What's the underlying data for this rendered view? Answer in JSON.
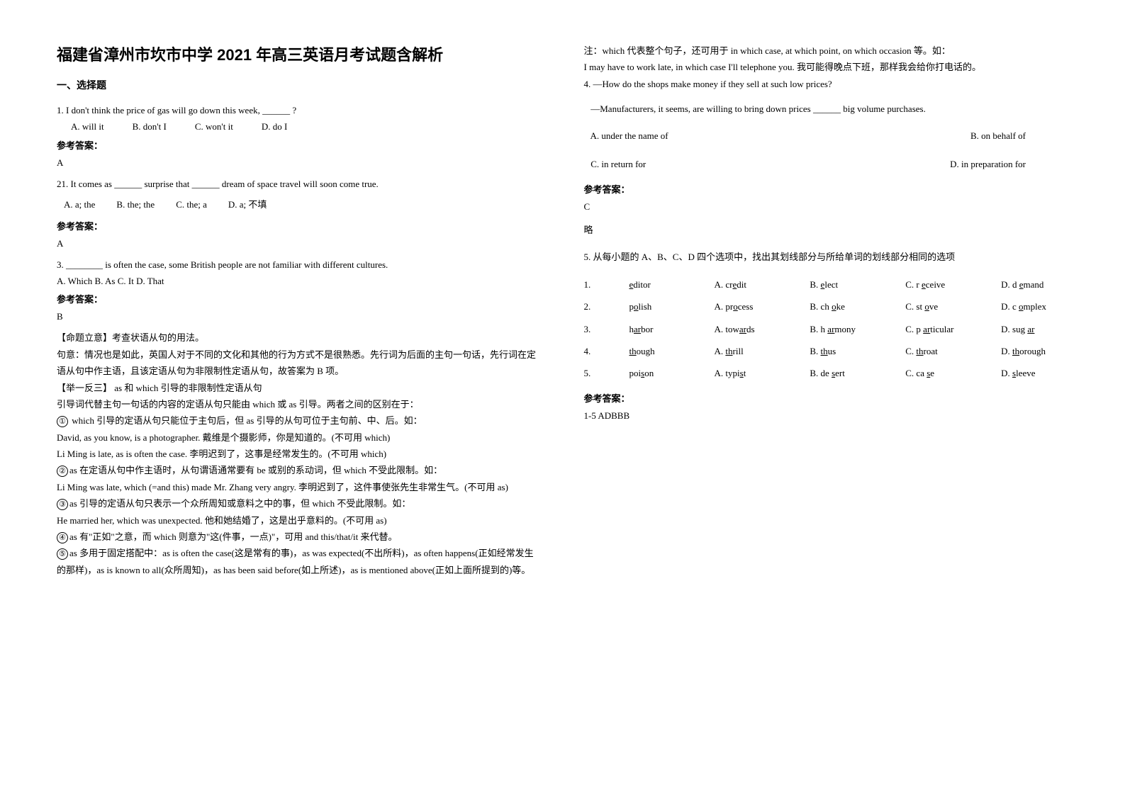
{
  "doc": {
    "title": "福建省漳州市坎市中学 2021 年高三英语月考试题含解析",
    "section1": "一、选择题",
    "q1": {
      "stem": "1. I don't think the price of gas will go down this week, ______ ?",
      "optA": "A. will it",
      "optB": "B. don't I",
      "optC": "C. won't it",
      "optD": "D. do I",
      "ansHead": "参考答案：",
      "ans": "A"
    },
    "q2": {
      "stem": "21. It comes as ______ surprise that ______ dream of space travel will soon come true.",
      "optA": "A. a; the",
      "optB": "B. the; the",
      "optC": "C. the; a",
      "optD": "D. a; 不填",
      "ansHead": "参考答案：",
      "ans": "A"
    },
    "q3": {
      "stem": "3. ________ is often the case, some British people are not familiar with different cultures.",
      "opts": "A. Which    B. As    C. It   D. That",
      "ansHead": "参考答案：",
      "ans": "B",
      "expl1": "【命题立意】考查状语从句的用法。",
      "expl2": "句意：情况也是如此，英国人对于不同的文化和其他的行为方式不是很熟悉。先行词为后面的主句一句话，先行词在定语从句中作主语，且该定语从句为非限制性定语从句，故答案为 B 项。",
      "expl3": "【举一反三】 as 和 which 引导的非限制性定语从句",
      "expl4": "引导词代替主句一句话的内容的定语从句只能由 which 或 as 引导。两者之间的区别在于：",
      "c1": "①",
      "e5": " which 引导的定语从句只能位于主句后，但 as 引导的从句可位于主句前、中、后。如：",
      "e6": "David, as you know, is a photographer. 戴维是个摄影师，你是知道的。(不可用 which)",
      "e7": "Li Ming is late, as is often the case. 李明迟到了，这事是经常发生的。(不可用 which)",
      "c2": "②",
      "e8": "as 在定语从句中作主语时，从句谓语通常要有 be 或别的系动词，但 which 不受此限制。如：",
      "e9": "Li Ming was late, which (=and this) made Mr. Zhang very angry. 李明迟到了，这件事使张先生非常生气。(不可用 as)",
      "c3": "③",
      "e10": "as 引导的定语从句只表示一个众所周知或意料之中的事，但 which 不受此限制。如：",
      "e11": "He married her, which was unexpected. 他和她结婚了，这是出乎意料的。(不可用 as)",
      "c4": "④",
      "e12": "as 有\"正如\"之意，而 which 则意为\"这(件事，一点)\"，可用 and this/that/it 来代替。",
      "c5": "⑤",
      "e13": "as 多用于固定搭配中：as is often the case(这是常有的事)，as was expected(不出所料)，as often happens(正如经常发生的那样)，as is known to all(众所周知)，as has been said before(如上所述)，as is mentioned above(正如上面所提到的)等。"
    },
    "right": {
      "note1": "注：which 代表整个句子，还可用于 in which case, at which point, on which occasion 等。如：",
      "note2": "I may have to work late, in which case I'll telephone you. 我可能得晚点下班，那样我会给你打电话的。",
      "q4stem1": "4. —How do the shops make money if they sell at such low prices?",
      "q4stem2": "   —Manufacturers, it seems, are willing to bring down prices ______ big volume purchases.",
      "q4a": "   A. under the name of",
      "q4b": "B. on behalf of",
      "q4c": "   C. in return for",
      "q4d": "D. in preparation for",
      "q4ansHead": "参考答案：",
      "q4ans": "C",
      "q4brief": "略",
      "q5stem": "5. 从每小题的 A、B、C、D 四个选项中，找出其划线部分与所给单词的划线部分相同的选项",
      "q5ansHead": "参考答案：",
      "q5ans": "1-5 ADBBB"
    },
    "phon": {
      "r1": {
        "n": "1.",
        "w": "editor",
        "uw": "e",
        "a": "A.",
        "aw": "credit",
        "au": "e",
        "b": "B. ",
        "bw": "elect",
        "bu": "e",
        "c": "C. r",
        "cw": "eceive",
        "cu": "e",
        "d": "D. d",
        "dw": "emand",
        "du": "e"
      },
      "r2": {
        "n": "2.",
        "w": "polish",
        "uw": "o",
        "a": "A.",
        "aw": "process",
        "au": "o",
        "b": "B. ch",
        "bw": "oke",
        "bu": "o",
        "c": "C. st",
        "cw": "ove",
        "cu": "o",
        "d": "D. c",
        "dw": "omplex",
        "du": "o"
      },
      "r3": {
        "n": "3.",
        "w": "harbor",
        "uw": "ar",
        "a": "A.",
        "aw": "towards",
        "au": "ar",
        "b": "B. h",
        "bw": "armony",
        "bu": "ar",
        "c": "C. p",
        "cw": "articular",
        "cu": "ar",
        "d": "D. sug",
        "dw": "ar",
        "du": "ar"
      },
      "r4": {
        "n": "4.",
        "w": "though",
        "uw": "th",
        "a": "A.",
        "aw": "thrill",
        "au": "th",
        "b": "B. ",
        "bw": "thus",
        "bu": "th",
        "c": "C. ",
        "cw": "throat",
        "cu": "th",
        "d": "D. ",
        "dw": "thorough",
        "du": "th"
      },
      "r5": {
        "n": "5.",
        "w": "poison",
        "uw": "s",
        "a": "A.",
        "aw": "typist",
        "au": "s",
        "b": "B. de",
        "bw": "sert",
        "bu": "s",
        "c": "C. ca",
        "cw": "se",
        "cu": "s",
        "d": "D. ",
        "dw": "sleeve",
        "du": "s"
      }
    }
  }
}
